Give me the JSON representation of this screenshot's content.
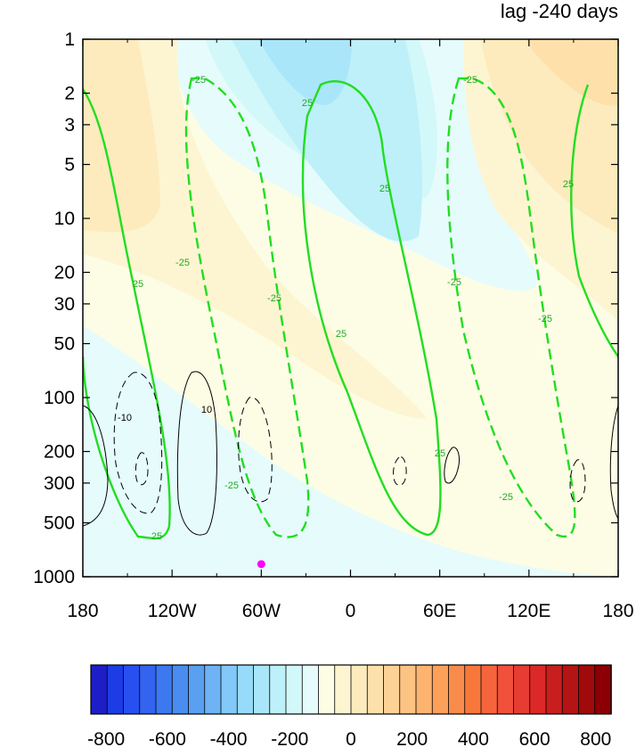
{
  "chart_data": {
    "type": "heatmap",
    "title": "lag -240 days",
    "x_ticks": [
      "180",
      "120W",
      "60W",
      "0",
      "60E",
      "120E",
      "180"
    ],
    "x_range": [
      -180,
      180
    ],
    "y_ticks": [
      "1",
      "2",
      "3",
      "5",
      "10",
      "20",
      "30",
      "50",
      "100",
      "200",
      "300",
      "500",
      "1000"
    ],
    "y_range": [
      1,
      1000
    ],
    "y_scale": "log",
    "y_reversed": true,
    "colorbar": {
      "labels": [
        "-800",
        "-600",
        "-400",
        "-200",
        "0",
        "200",
        "400",
        "600",
        "800"
      ],
      "min": -850,
      "max": 850,
      "step": 50,
      "colors": [
        "#1e1ec8",
        "#1e3ce6",
        "#2850f0",
        "#3264f0",
        "#3c78f0",
        "#4b8cf0",
        "#5aa0f0",
        "#6eb4f5",
        "#82c8f8",
        "#96dcfa",
        "#aae6fa",
        "#bef0fa",
        "#d2f8fa",
        "#e6fcfc",
        "#fdfde6",
        "#fdf5d2",
        "#fdebbe",
        "#fde0aa",
        "#fcd296",
        "#fcc382",
        "#fcb46e",
        "#fca05a",
        "#fa8c4b",
        "#f8783c",
        "#f5643c",
        "#f0503c",
        "#e63c32",
        "#dc2828",
        "#c81e1e",
        "#b41414",
        "#a00a0a",
        "#8c0005"
      ]
    },
    "shading_levels_visible": [
      -250,
      -200,
      -150,
      -100,
      -50,
      0,
      50,
      100,
      150,
      200
    ],
    "green_contour_label": "25",
    "green_contour_label_negative": "-25",
    "black_contour_label": "10",
    "black_contour_label_negative": "-10",
    "marker": {
      "lon": -60,
      "pressure": 850,
      "color": "#ff00ff"
    }
  }
}
